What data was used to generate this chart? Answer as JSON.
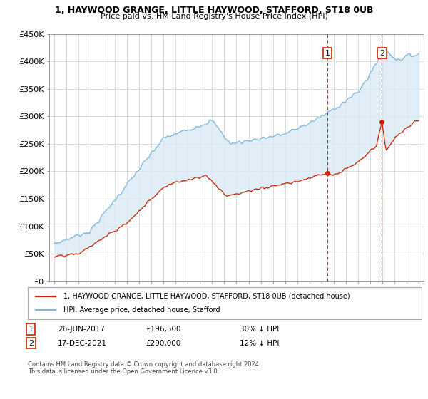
{
  "title_line1": "1, HAYWOOD GRANGE, LITTLE HAYWOOD, STAFFORD, ST18 0UB",
  "title_line2": "Price paid vs. HM Land Registry's House Price Index (HPI)",
  "ylim": [
    0,
    450000
  ],
  "yticks": [
    0,
    50000,
    100000,
    150000,
    200000,
    250000,
    300000,
    350000,
    400000,
    450000
  ],
  "ytick_labels": [
    "£0",
    "£50K",
    "£100K",
    "£150K",
    "£200K",
    "£250K",
    "£300K",
    "£350K",
    "£400K",
    "£450K"
  ],
  "hpi_color": "#7ab8d9",
  "hpi_fill_color": "#daeaf5",
  "price_color": "#cc2200",
  "vline_color": "#cc2200",
  "legend_label_price": "1, HAYWOOD GRANGE, LITTLE HAYWOOD, STAFFORD, ST18 0UB (detached house)",
  "legend_label_hpi": "HPI: Average price, detached house, Stafford",
  "annotation1_date": "26-JUN-2017",
  "annotation1_price": "£196,500",
  "annotation1_pct": "30% ↓ HPI",
  "annotation2_date": "17-DEC-2021",
  "annotation2_price": "£290,000",
  "annotation2_pct": "12% ↓ HPI",
  "footnote": "Contains HM Land Registry data © Crown copyright and database right 2024.\nThis data is licensed under the Open Government Licence v3.0.",
  "background_color": "#ffffff",
  "grid_color": "#cccccc",
  "sale1_year": 2017.486,
  "sale1_price": 196500,
  "sale2_year": 2021.956,
  "sale2_price": 290000
}
